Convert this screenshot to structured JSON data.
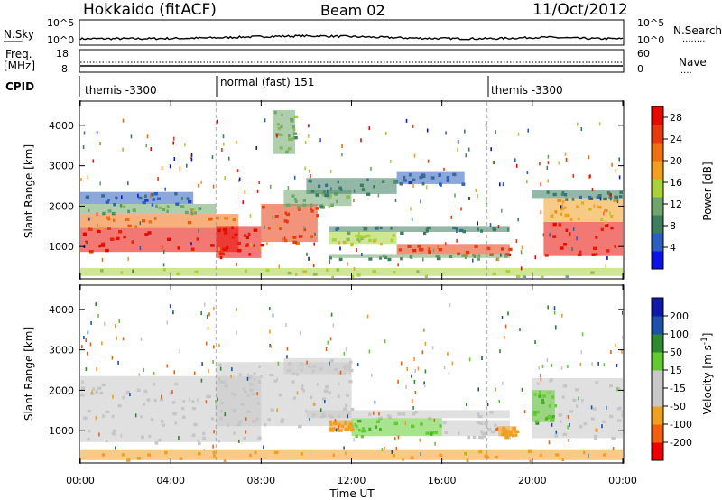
{
  "header": {
    "station": "Hokkaido (fitACF)",
    "beam": "Beam 02",
    "date": "11/Oct/2012"
  },
  "panels": {
    "nsky": {
      "label": "N.Sky",
      "ticks": [
        "10^5",
        "10^0"
      ],
      "right_ticks": [
        "10^5",
        "10^0"
      ],
      "right_label": "N.Search",
      "right_legend": "........"
    },
    "freq": {
      "label_lines": [
        "Freq.",
        "[MHz]"
      ],
      "ticks": [
        "18",
        "8"
      ],
      "right_ticks": [
        "60",
        "0"
      ],
      "right_label": "Nave",
      "right_legend": "...."
    },
    "cpid": {
      "label": "CPID",
      "segments": [
        {
          "label": "themis -3300",
          "start_hour": 0
        },
        {
          "label": "normal (fast) 151",
          "start_hour": 6
        },
        {
          "label": "themis -3300",
          "start_hour": 18
        }
      ]
    }
  },
  "colors": {
    "power": [
      "#0a14e6",
      "#2c5fbf",
      "#3d7d60",
      "#6da56a",
      "#a8d238",
      "#f0a01e",
      "#f07010",
      "#e83a10",
      "#e60a00"
    ],
    "velocity": [
      "#ee0000",
      "#f06010",
      "#f0a020",
      "#c8c8c8",
      "#c8c8c8",
      "#60cc30",
      "#2e8a2e",
      "#1e50aa",
      "#101aaa"
    ],
    "gray": "#c6c6c6"
  },
  "chart_data": [
    {
      "type": "heatmap",
      "name": "power",
      "xlabel": "Time UT",
      "ylabel": "Slant Range [km]",
      "xlim": [
        0,
        24
      ],
      "ylim": [
        200,
        4600
      ],
      "yticks": [
        "1000",
        "2000",
        "3000",
        "4000"
      ],
      "xticks": [
        "00:00",
        "04:00",
        "08:00",
        "12:00",
        "16:00",
        "20:00",
        "00:00"
      ],
      "colorbar": {
        "label": "Power [dB]",
        "ticks": [
          "4",
          "8",
          "12",
          "16",
          "20",
          "24",
          "28"
        ],
        "range": [
          0,
          30
        ]
      },
      "bands": [
        {
          "t0": 0,
          "t1": 7,
          "r0": 850,
          "r1": 1450,
          "level": 28
        },
        {
          "t0": 0,
          "t1": 7,
          "r0": 1450,
          "r1": 1800,
          "level": 22
        },
        {
          "t0": 0,
          "t1": 6,
          "r0": 1800,
          "r1": 2050,
          "level": 12
        },
        {
          "t0": 0,
          "t1": 5,
          "r0": 2050,
          "r1": 2350,
          "level": 6
        },
        {
          "t0": 6,
          "t1": 8,
          "r0": 700,
          "r1": 1500,
          "level": 27
        },
        {
          "t0": 8,
          "t1": 10.5,
          "r0": 1100,
          "r1": 2050,
          "level": 24
        },
        {
          "t0": 9,
          "t1": 12,
          "r0": 2000,
          "r1": 2400,
          "level": 12
        },
        {
          "t0": 10,
          "t1": 14,
          "r0": 2300,
          "r1": 2700,
          "level": 8
        },
        {
          "t0": 14,
          "t1": 17,
          "r0": 2550,
          "r1": 2850,
          "level": 6
        },
        {
          "t0": 11,
          "t1": 19,
          "r0": 1350,
          "r1": 1500,
          "level": 7
        },
        {
          "t0": 11,
          "t1": 14,
          "r0": 1050,
          "r1": 1350,
          "level": 15
        },
        {
          "t0": 14,
          "t1": 19,
          "r0": 800,
          "r1": 1050,
          "level": 25
        },
        {
          "t0": 11,
          "t1": 19,
          "r0": 700,
          "r1": 800,
          "level": 10
        },
        {
          "t0": 20.5,
          "t1": 24,
          "r0": 750,
          "r1": 1600,
          "level": 27
        },
        {
          "t0": 20.5,
          "t1": 24,
          "r0": 1600,
          "r1": 2200,
          "level": 18
        },
        {
          "t0": 20,
          "t1": 24,
          "r0": 2200,
          "r1": 2400,
          "level": 8
        },
        {
          "t0": 8.5,
          "t1": 9.5,
          "r0": 3300,
          "r1": 4400,
          "level": 12
        },
        {
          "t0": 0,
          "t1": 24,
          "r0": 250,
          "r1": 450,
          "level": 14
        }
      ]
    },
    {
      "type": "heatmap",
      "name": "velocity",
      "xlabel": "Time UT",
      "ylabel": "Slant Range [km]",
      "xlim": [
        0,
        24
      ],
      "ylim": [
        200,
        4600
      ],
      "yticks": [
        "1000",
        "2000",
        "3000",
        "4000"
      ],
      "xticks": [
        "00:00",
        "04:00",
        "08:00",
        "12:00",
        "16:00",
        "20:00",
        "00:00"
      ],
      "colorbar": {
        "label": "Velocity [m s^-1]",
        "ticks": [
          "200",
          "100",
          "50",
          "15",
          "-15",
          "-50",
          "-100",
          "-200"
        ],
        "range": [
          -250,
          250
        ]
      },
      "bands": [
        {
          "t0": 0,
          "t1": 8,
          "r0": 700,
          "r1": 2350,
          "level": 0
        },
        {
          "t0": 6,
          "t1": 12,
          "r0": 1100,
          "r1": 2700,
          "level": 0
        },
        {
          "t0": 10,
          "t1": 19,
          "r0": 1300,
          "r1": 1500,
          "level": 0
        },
        {
          "t0": 12,
          "t1": 16,
          "r0": 850,
          "r1": 1300,
          "level": 45
        },
        {
          "t0": 16,
          "t1": 19,
          "r0": 850,
          "r1": 1250,
          "level": 0
        },
        {
          "t0": 11,
          "t1": 12,
          "r0": 1000,
          "r1": 1250,
          "level": -60
        },
        {
          "t0": 18.5,
          "t1": 19.3,
          "r0": 850,
          "r1": 1100,
          "level": -60
        },
        {
          "t0": 20,
          "t1": 24,
          "r0": 800,
          "r1": 2300,
          "level": 0
        },
        {
          "t0": 20,
          "t1": 21,
          "r0": 1200,
          "r1": 2000,
          "level": 45
        },
        {
          "t0": 9,
          "t1": 12,
          "r0": 2400,
          "r1": 2800,
          "level": -40
        },
        {
          "t0": 0,
          "t1": 24,
          "r0": 250,
          "r1": 500,
          "level": -60
        }
      ]
    }
  ]
}
